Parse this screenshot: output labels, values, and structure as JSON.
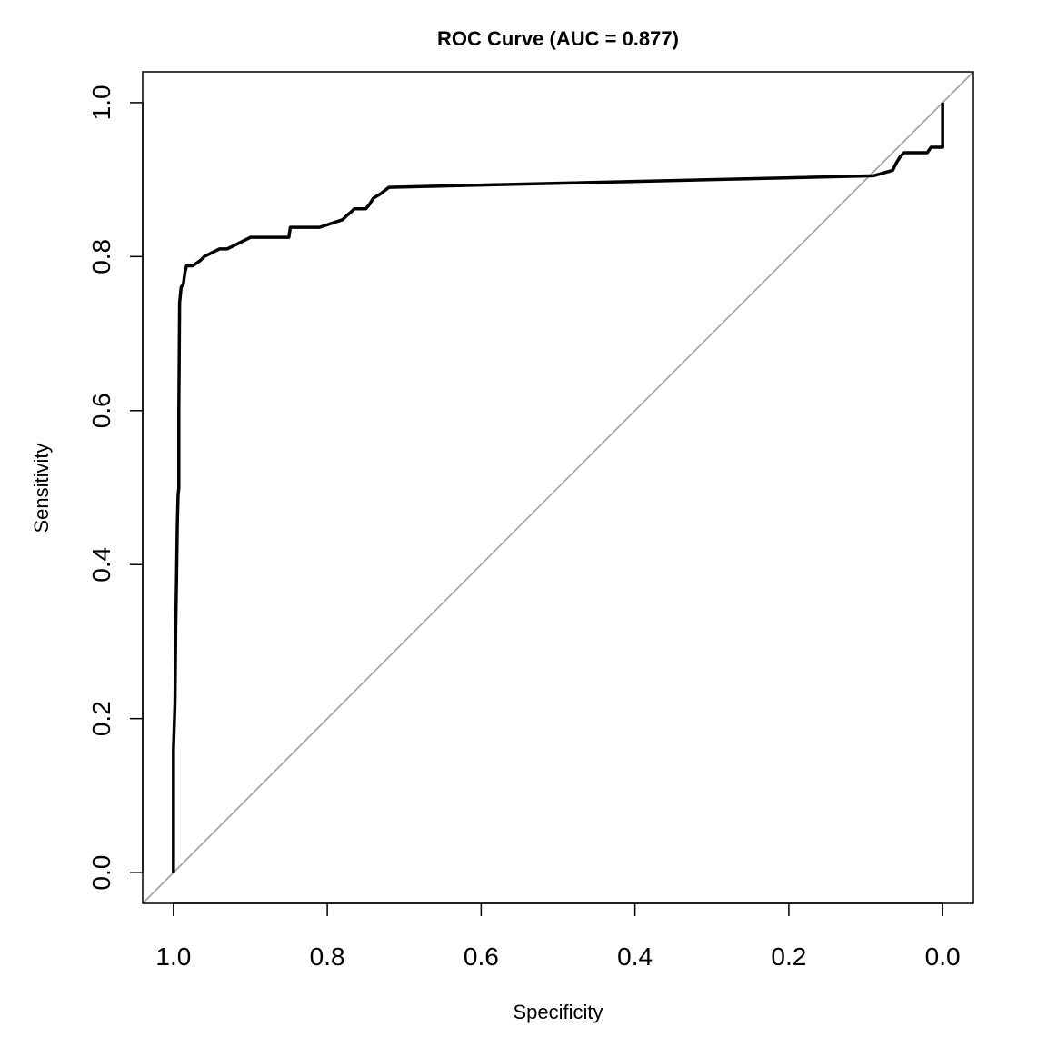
{
  "chart_data": {
    "type": "line",
    "title": "ROC Curve (AUC = 0.877)",
    "xlabel": "Specificity",
    "ylabel": "Sensitivity",
    "xlim": [
      1.04,
      -0.04
    ],
    "ylim": [
      -0.04,
      1.04
    ],
    "x_ticks": [
      1.0,
      0.8,
      0.6,
      0.4,
      0.2,
      0.0
    ],
    "x_tick_labels": [
      "1.0",
      "0.8",
      "0.6",
      "0.4",
      "0.2",
      "0.0"
    ],
    "y_ticks": [
      0.0,
      0.2,
      0.4,
      0.6,
      0.8,
      1.0
    ],
    "y_tick_labels": [
      "0.0",
      "0.2",
      "0.4",
      "0.6",
      "0.8",
      "1.0"
    ],
    "reference_line": {
      "name": "chance diagonal",
      "color": "#a0a0a0",
      "from": [
        1.0,
        0.0
      ],
      "to": [
        0.0,
        1.0
      ]
    },
    "series": [
      {
        "name": "ROC",
        "color": "#000000",
        "specificity": [
          1.0,
          1.0,
          0.998,
          0.997,
          0.996,
          0.995,
          0.994,
          0.993,
          0.993,
          0.992,
          0.99,
          0.987,
          0.985,
          0.983,
          0.975,
          0.965,
          0.96,
          0.95,
          0.94,
          0.93,
          0.92,
          0.91,
          0.9,
          0.85,
          0.848,
          0.81,
          0.78,
          0.775,
          0.77,
          0.765,
          0.75,
          0.745,
          0.74,
          0.73,
          0.72,
          0.09,
          0.065,
          0.06,
          0.055,
          0.05,
          0.02,
          0.015,
          0.0,
          0.0,
          0.0
        ],
        "sensitivity": [
          0.0,
          0.16,
          0.22,
          0.32,
          0.38,
          0.45,
          0.49,
          0.5,
          0.6,
          0.74,
          0.76,
          0.765,
          0.78,
          0.788,
          0.788,
          0.795,
          0.8,
          0.805,
          0.81,
          0.81,
          0.815,
          0.82,
          0.825,
          0.825,
          0.838,
          0.838,
          0.848,
          0.853,
          0.857,
          0.862,
          0.862,
          0.868,
          0.876,
          0.882,
          0.89,
          0.905,
          0.912,
          0.922,
          0.93,
          0.935,
          0.935,
          0.942,
          0.942,
          0.96,
          1.0
        ]
      }
    ]
  }
}
